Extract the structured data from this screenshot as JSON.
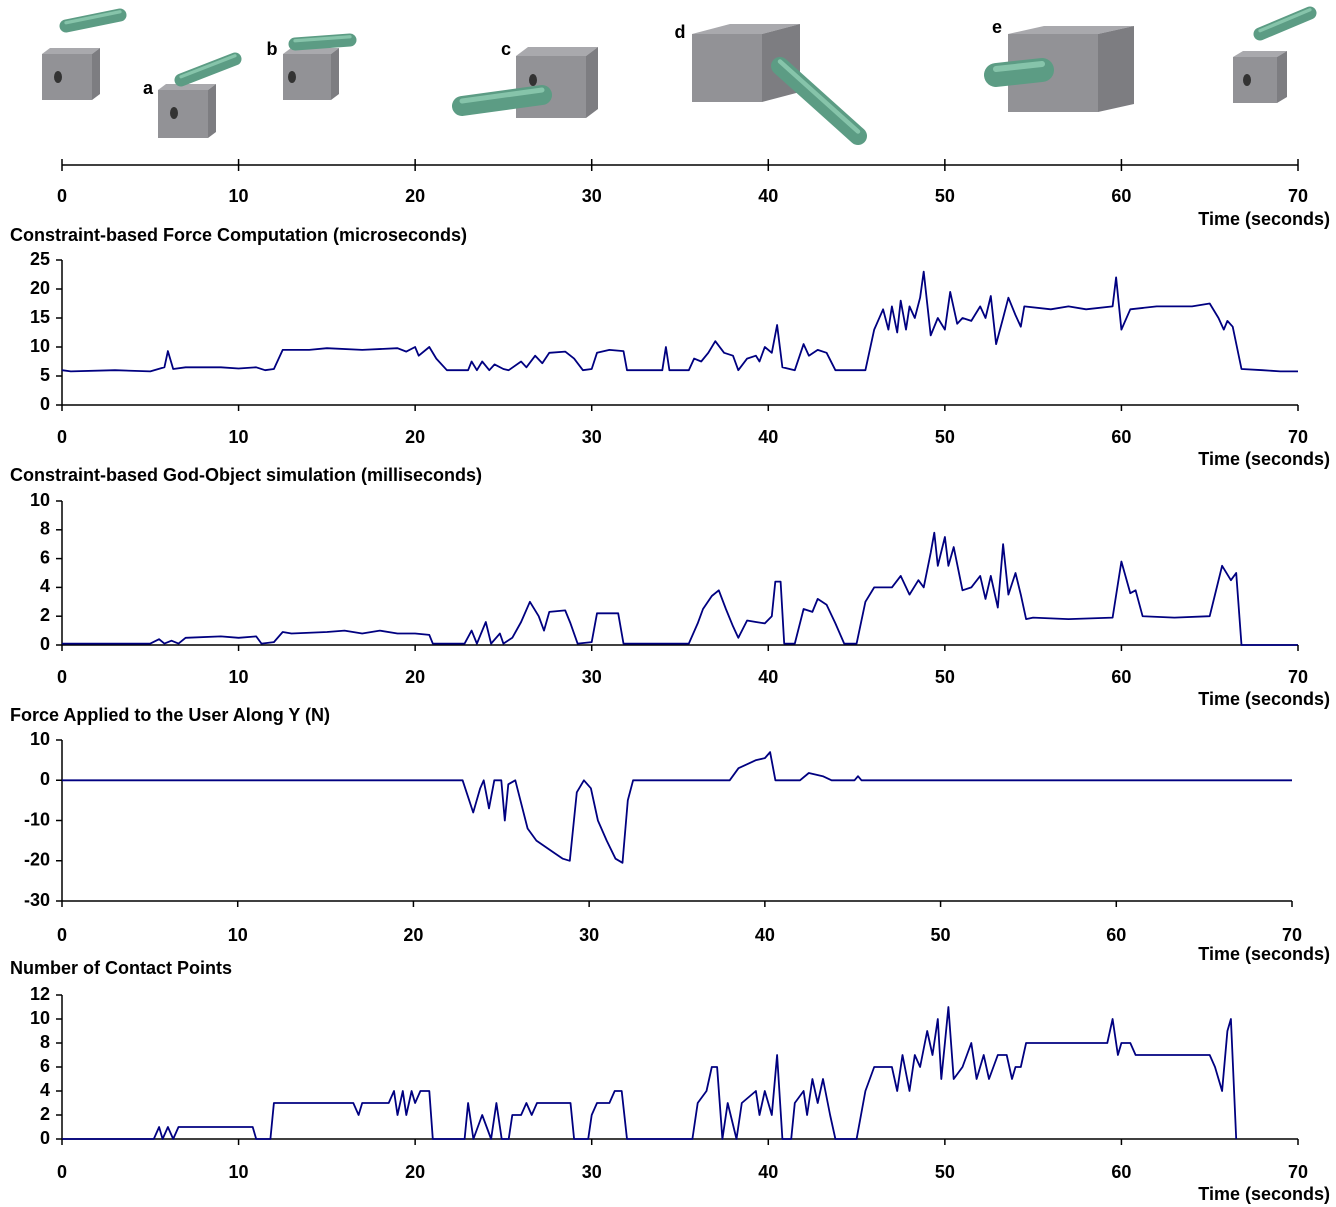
{
  "chart_data": [
    {
      "type": "timeline",
      "xlabel": "Time (seconds)",
      "xlim": [
        0,
        70
      ],
      "xticks": [
        0,
        10,
        20,
        30,
        40,
        50,
        60,
        70
      ],
      "annotations": [
        "a",
        "b",
        "c",
        "d",
        "e"
      ]
    },
    {
      "type": "line",
      "title": "Constraint-based Force Computation (microseconds)",
      "xlabel": "Time (seconds)",
      "xlim": [
        0,
        70
      ],
      "xticks": [
        0,
        10,
        20,
        30,
        40,
        50,
        60,
        70
      ],
      "ylim": [
        0,
        25
      ],
      "yticks": [
        0,
        5,
        10,
        15,
        20,
        25
      ],
      "color": "#000080",
      "x": [
        0,
        0.5,
        3,
        5,
        5.8,
        6,
        6.3,
        7,
        9,
        10,
        11,
        11.5,
        12,
        12.5,
        14,
        15,
        17,
        19,
        19.5,
        20,
        20.2,
        20.8,
        21.2,
        21.8,
        23,
        23.2,
        23.5,
        23.8,
        24.2,
        24.5,
        25,
        25.3,
        26,
        26.3,
        26.8,
        27.2,
        27.6,
        28.5,
        29,
        29.5,
        30,
        30.3,
        31,
        31.8,
        32,
        34,
        34.2,
        34.4,
        35.5,
        35.8,
        36.2,
        36.6,
        37,
        37.5,
        38,
        38.3,
        38.8,
        39.3,
        39.5,
        39.8,
        40.2,
        40.5,
        40.8,
        41.5,
        42,
        42.3,
        42.8,
        43.3,
        43.8,
        45.5,
        46,
        46.5,
        46.8,
        47,
        47.3,
        47.5,
        47.8,
        48,
        48.3,
        48.6,
        48.8,
        49.2,
        49.6,
        50,
        50.3,
        50.7,
        51,
        51.5,
        52,
        52.3,
        52.6,
        52.9,
        53.3,
        53.6,
        54,
        54.3,
        54.5,
        56,
        57,
        58,
        59.5,
        59.7,
        60,
        60.5,
        62,
        64,
        65,
        65.5,
        65.8,
        66,
        66.3,
        66.8,
        68,
        69,
        70
      ],
      "values": [
        6,
        5.8,
        6,
        5.8,
        6.5,
        9.3,
        6.2,
        6.5,
        6.5,
        6.3,
        6.5,
        6,
        6.2,
        9.5,
        9.5,
        9.8,
        9.5,
        9.8,
        9.2,
        10,
        8.5,
        10,
        8,
        6,
        6,
        7.5,
        6,
        7.5,
        6,
        7,
        6.2,
        6,
        7.5,
        6.5,
        8.5,
        7.2,
        9,
        9.2,
        8,
        6,
        6.2,
        9,
        9.5,
        9.3,
        6,
        6,
        10,
        6,
        6,
        8,
        7.5,
        9,
        11,
        9,
        8.5,
        6,
        8,
        8.5,
        7.5,
        10,
        9,
        13.8,
        6.5,
        6,
        10.5,
        8.5,
        9.5,
        9,
        6,
        6,
        13,
        16.5,
        13,
        17,
        12.5,
        18,
        13,
        17,
        15,
        18.5,
        23,
        12,
        15,
        13,
        19.5,
        14,
        15,
        14.5,
        17,
        15,
        18.8,
        10.5,
        15,
        18.5,
        15.5,
        13.5,
        17,
        16.5,
        17,
        16.5,
        17,
        22,
        13,
        16.5,
        17,
        17,
        17.5,
        15,
        13,
        14.5,
        13.5,
        6.2,
        6,
        5.8,
        5.8
      ]
    },
    {
      "type": "line",
      "title": "Constraint-based God-Object simulation (milliseconds)",
      "xlabel": "Time (seconds)",
      "xlim": [
        0,
        70
      ],
      "xticks": [
        0,
        10,
        20,
        30,
        40,
        50,
        60,
        70
      ],
      "ylim": [
        0,
        10
      ],
      "yticks": [
        0,
        2,
        4,
        6,
        8,
        10
      ],
      "color": "#000080",
      "x": [
        0,
        5,
        5.5,
        5.8,
        6.2,
        6.6,
        7,
        9,
        10,
        11,
        11.3,
        12,
        12.5,
        13,
        15,
        16,
        17,
        18,
        19,
        20,
        20.8,
        21,
        22.8,
        23.2,
        23.5,
        24,
        24.3,
        24.8,
        25,
        25.5,
        26,
        26.5,
        27,
        27.3,
        27.6,
        28.5,
        28.8,
        29.2,
        30,
        30.3,
        31.5,
        31.8,
        35.5,
        36,
        36.3,
        36.8,
        37.2,
        37.6,
        38,
        38.3,
        38.8,
        39.3,
        39.8,
        40.2,
        40.4,
        40.7,
        40.9,
        41.5,
        42,
        42.5,
        42.8,
        43.3,
        43.8,
        44.3,
        45,
        45.5,
        46,
        47,
        47.5,
        48,
        48.5,
        48.8,
        49.2,
        49.4,
        49.6,
        50,
        50.2,
        50.5,
        51,
        51.5,
        52,
        52.3,
        52.6,
        53,
        53.3,
        53.6,
        54,
        54.3,
        54.6,
        55,
        57,
        59.5,
        60,
        60.5,
        60.8,
        61.2,
        63,
        65,
        65.3,
        65.7,
        66.2,
        66.5,
        66.8,
        70
      ],
      "values": [
        0.1,
        0.1,
        0.4,
        0.1,
        0.3,
        0.1,
        0.5,
        0.6,
        0.5,
        0.6,
        0.1,
        0.2,
        0.9,
        0.8,
        0.9,
        1,
        0.8,
        1,
        0.8,
        0.8,
        0.7,
        0.1,
        0.1,
        1,
        0.1,
        1.6,
        0.1,
        0.8,
        0.1,
        0.5,
        1.6,
        3,
        2,
        1,
        2.3,
        2.4,
        1.5,
        0.1,
        0.2,
        2.2,
        2.2,
        0.1,
        0.1,
        1.5,
        2.5,
        3.4,
        3.8,
        2.5,
        1.3,
        0.5,
        1.7,
        1.6,
        1.5,
        2,
        4.4,
        4.4,
        0.1,
        0.1,
        2.5,
        2.3,
        3.2,
        2.8,
        1.5,
        0.1,
        0.1,
        3,
        4,
        4,
        4.8,
        3.5,
        4.5,
        4,
        6.4,
        7.8,
        5.5,
        7.5,
        5.5,
        6.8,
        3.8,
        4,
        4.8,
        3.2,
        4.8,
        2.6,
        7,
        3.5,
        5,
        3.5,
        1.8,
        1.9,
        1.8,
        1.9,
        5.8,
        3.6,
        3.8,
        2,
        1.9,
        2,
        3.5,
        5.5,
        4.5,
        5,
        0,
        0
      ]
    },
    {
      "type": "line",
      "title": "Force Applied to the User Along Y (N)",
      "xlabel": "Time (seconds)",
      "xlim": [
        0,
        70
      ],
      "xticks": [
        0,
        10,
        20,
        30,
        40,
        50,
        60,
        70
      ],
      "ylim": [
        -30,
        10
      ],
      "yticks": [
        -30,
        -20,
        -10,
        0,
        10
      ],
      "color": "#000080",
      "x": [
        0,
        22.8,
        23.4,
        23.8,
        24,
        24.3,
        24.6,
        25,
        25.2,
        25.4,
        25.8,
        26.5,
        27,
        28,
        28.5,
        28.9,
        29.3,
        29.7,
        30.1,
        30.5,
        31,
        31.5,
        31.9,
        32.2,
        32.5,
        38,
        38.5,
        39.5,
        40,
        40.3,
        40.6,
        42,
        42.5,
        43.3,
        43.8,
        45.1,
        45.3,
        45.5,
        70
      ],
      "values": [
        0,
        0,
        -8,
        -2,
        0,
        -7,
        0,
        0,
        -10,
        -1,
        0,
        -12,
        -15,
        -18,
        -19.5,
        -20,
        -3,
        0,
        -2,
        -10,
        -15,
        -19.5,
        -20.5,
        -5,
        0,
        0,
        3,
        5,
        5.5,
        7,
        0,
        0,
        1.8,
        1,
        0,
        0,
        1,
        0,
        0
      ]
    },
    {
      "type": "line",
      "title": "Number of Contact Points",
      "xlabel": "Time (seconds)",
      "xlim": [
        0,
        70
      ],
      "xticks": [
        0,
        10,
        20,
        30,
        40,
        50,
        60,
        70
      ],
      "ylim": [
        0,
        12
      ],
      "yticks": [
        0,
        2,
        4,
        6,
        8,
        10,
        12
      ],
      "color": "#000080",
      "x": [
        0,
        5.2,
        5.5,
        5.7,
        6,
        6.3,
        6.6,
        10.8,
        11,
        11.8,
        12,
        16.5,
        16.8,
        17,
        18.5,
        18.8,
        19,
        19.3,
        19.5,
        19.8,
        20,
        20.3,
        20.8,
        21,
        22.8,
        23,
        23.3,
        23.8,
        24.3,
        24.6,
        24.9,
        25.3,
        25.5,
        26,
        26.3,
        26.6,
        26.9,
        28.8,
        29,
        29.8,
        30,
        30.3,
        31,
        31.3,
        31.7,
        32,
        35.7,
        36,
        36.5,
        36.8,
        37.1,
        37.4,
        37.7,
        38.2,
        38.5,
        39.3,
        39.5,
        39.8,
        40.2,
        40.5,
        40.8,
        41.3,
        41.5,
        42,
        42.2,
        42.5,
        42.8,
        43.1,
        43.5,
        43.8,
        45,
        45.5,
        46,
        47,
        47.3,
        47.6,
        48,
        48.3,
        48.6,
        49,
        49.3,
        49.6,
        49.8,
        50,
        50.2,
        50.5,
        51,
        51.5,
        51.8,
        52.2,
        52.5,
        53,
        53.5,
        53.8,
        54,
        54.3,
        54.6,
        59.2,
        59.5,
        59.8,
        60,
        60.5,
        60.8,
        65,
        65.3,
        65.7,
        66,
        66.2,
        66.5
      ],
      "values": [
        0,
        0,
        1,
        0,
        1,
        0,
        1,
        1,
        0,
        0,
        3,
        3,
        2,
        3,
        3,
        4,
        2,
        4,
        2,
        4,
        3,
        4,
        4,
        0,
        0,
        3,
        0,
        2,
        0,
        3,
        0,
        0,
        2,
        2,
        3,
        2,
        3,
        3,
        0,
        0,
        2,
        3,
        3,
        4,
        4,
        0,
        0,
        3,
        4,
        6,
        6,
        0,
        3,
        0,
        3,
        4,
        2,
        4,
        2,
        7,
        0,
        0,
        3,
        4,
        2,
        5,
        3,
        5,
        2,
        0,
        0,
        4,
        6,
        6,
        4,
        7,
        4,
        7,
        6,
        9,
        7,
        10,
        5,
        8,
        11,
        5,
        6,
        8,
        5,
        7,
        5,
        7,
        7,
        5,
        6,
        6,
        8,
        8,
        10,
        7,
        8,
        8,
        7,
        7,
        6,
        4,
        9,
        10,
        0
      ]
    }
  ]
}
